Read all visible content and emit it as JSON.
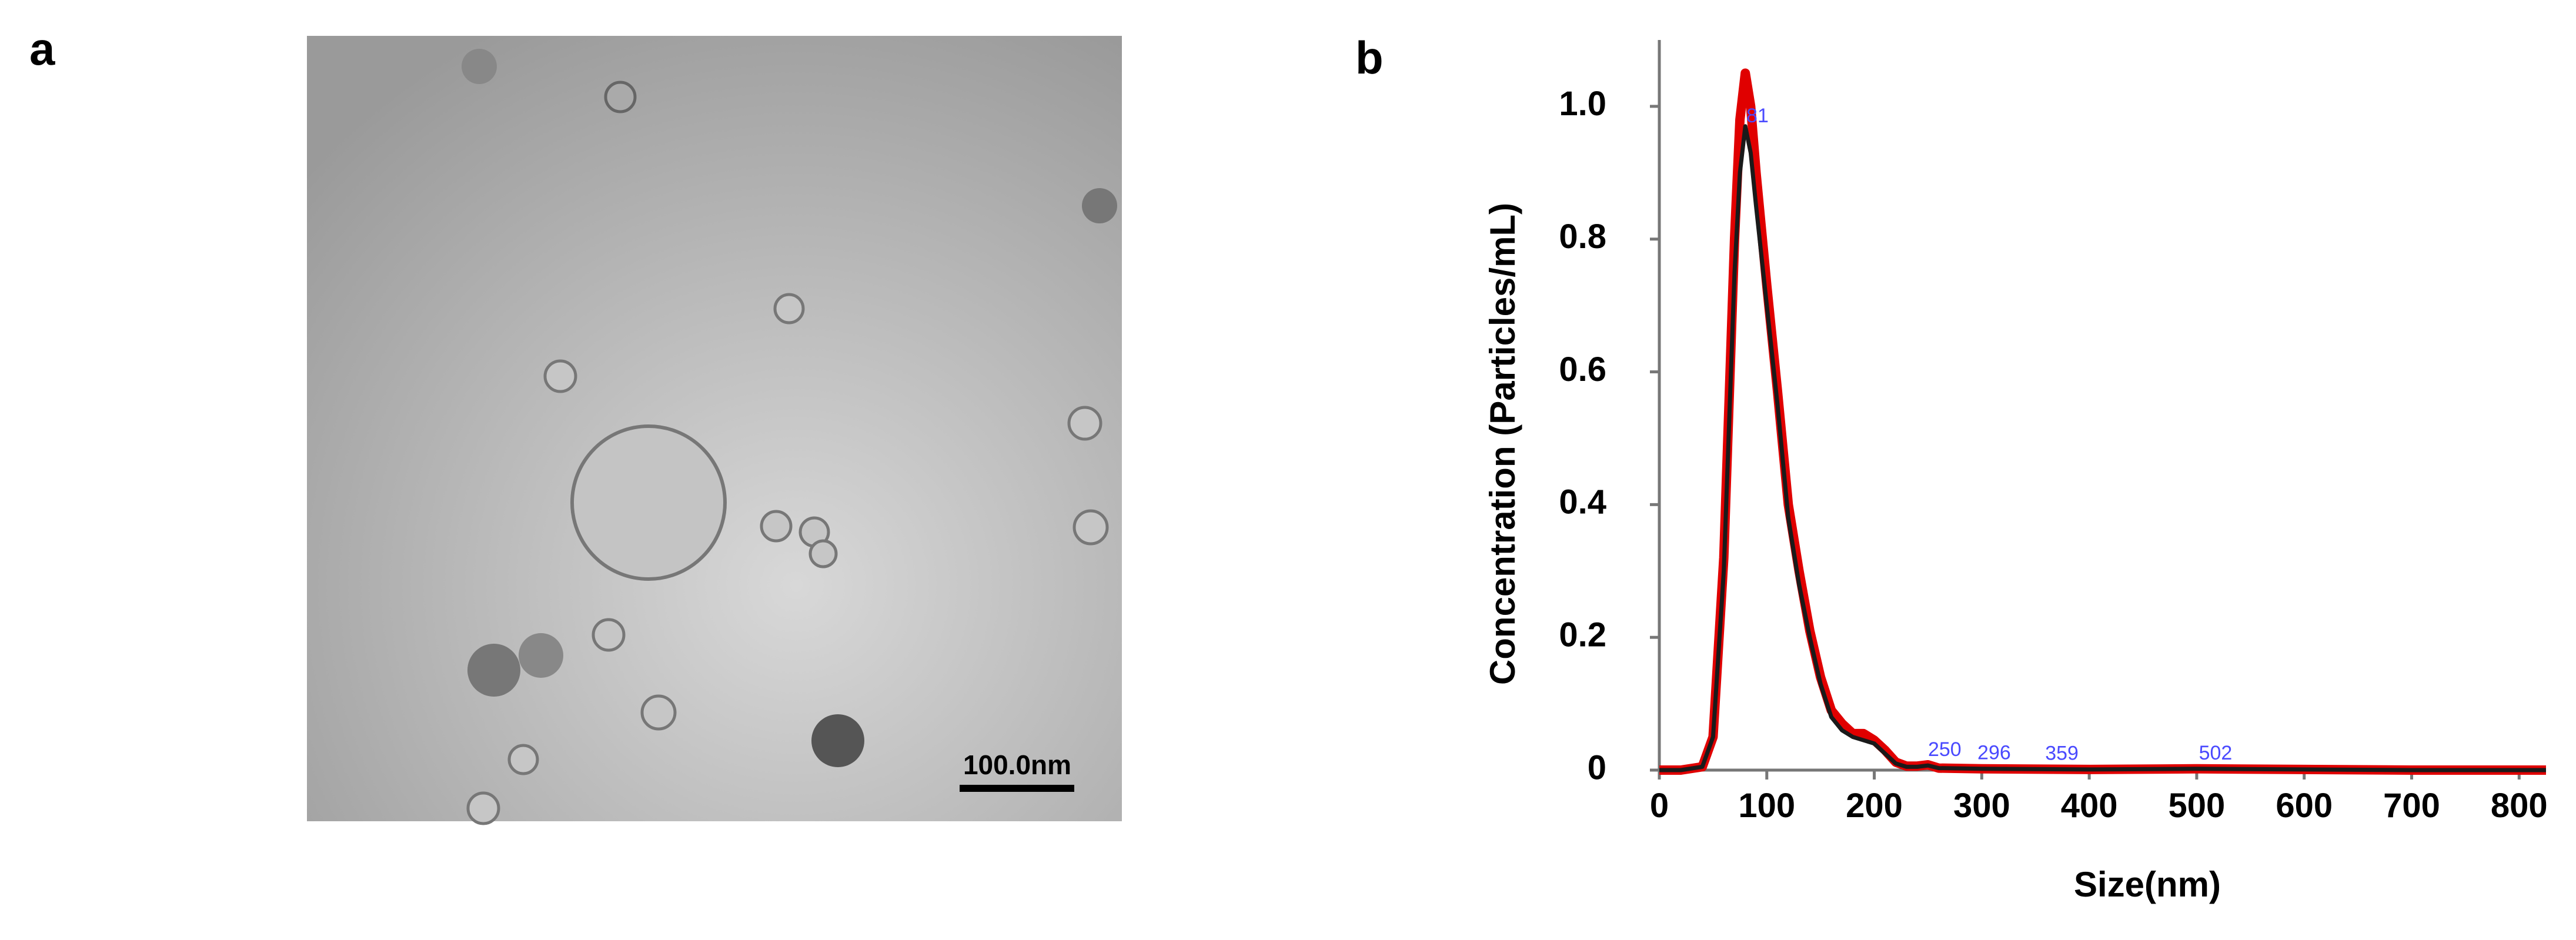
{
  "panel_labels": [
    "a",
    "b"
  ],
  "scale_bar": "100.0nm",
  "chart_data": {
    "type": "line",
    "xlabel": "Size(nm)",
    "ylabel": "Concentration (Particles/mL)",
    "x": [
      0,
      20,
      40,
      50,
      60,
      70,
      75,
      80,
      85,
      90,
      100,
      110,
      120,
      130,
      140,
      150,
      160,
      170,
      180,
      190,
      200,
      210,
      220,
      230,
      240,
      250,
      260,
      300,
      400,
      500,
      600,
      700,
      825
    ],
    "series": [
      {
        "color": "#e00000",
        "values": [
          0,
          0,
          0.005,
          0.05,
          0.32,
          0.8,
          0.98,
          1.05,
          1.0,
          0.9,
          0.73,
          0.57,
          0.4,
          0.3,
          0.21,
          0.14,
          0.09,
          0.07,
          0.055,
          0.055,
          0.045,
          0.03,
          0.012,
          0.006,
          0.006,
          0.008,
          0.003,
          0.002,
          0.001,
          0.002,
          0.001,
          0,
          0
        ]
      },
      {
        "color": "#1a1a1a",
        "values": [
          0,
          0,
          0.005,
          0.05,
          0.3,
          0.75,
          0.9,
          0.97,
          0.93,
          0.85,
          0.7,
          0.55,
          0.38,
          0.28,
          0.2,
          0.13,
          0.08,
          0.06,
          0.05,
          0.045,
          0.04,
          0.025,
          0.01,
          0.005,
          0.005,
          0.007,
          0.003,
          0.002,
          0.001,
          0.002,
          0.001,
          0,
          0
        ]
      }
    ],
    "peak_labels": [
      81,
      250,
      296,
      359,
      502
    ],
    "peak_label_color": "#4a4aff",
    "xlim": [
      0,
      825
    ],
    "ylim": [
      0,
      1.1
    ],
    "xticks": [
      0,
      100,
      200,
      300,
      400,
      500,
      600,
      700,
      800
    ],
    "yticks": [
      0,
      0.2,
      0.4,
      0.6,
      0.8,
      {
        "value": 1,
        "label": "1.0"
      }
    ]
  }
}
